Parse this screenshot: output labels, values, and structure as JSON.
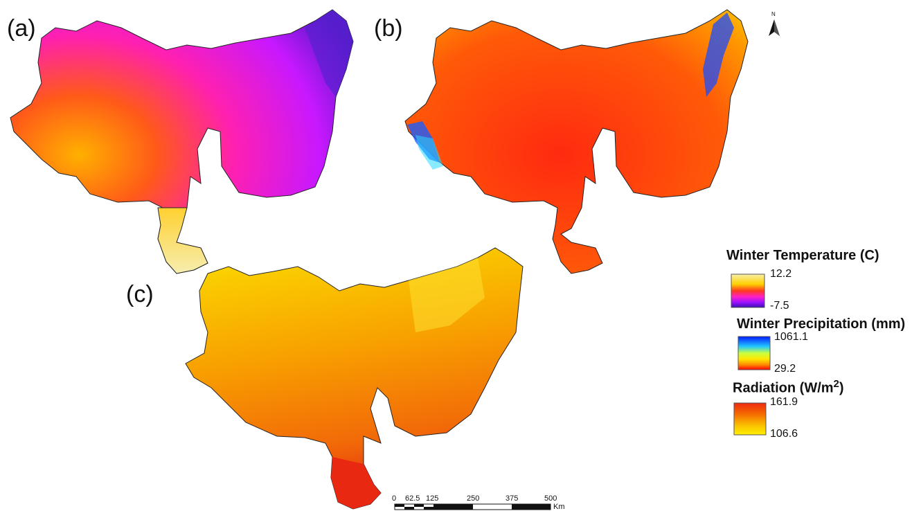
{
  "panels": [
    {
      "label": "(a)",
      "variable": "Winter Temperature"
    },
    {
      "label": "(b)",
      "variable": "Winter Precipitation"
    },
    {
      "label": "(c)",
      "variable": "Radiation"
    }
  ],
  "north_arrow": {
    "letter": "N"
  },
  "legends": {
    "temperature": {
      "title": "Winter Temperature (C)",
      "max": "12.2",
      "min": "-7.5",
      "colors": [
        "#f7f0a8",
        "#ffd000",
        "#ff3a1e",
        "#ff20c8",
        "#9a10ff",
        "#3a10b0"
      ]
    },
    "precipitation": {
      "title": "Winter Precipitation (mm)",
      "max": "1061.1",
      "min": "29.2",
      "colors": [
        "#0018ff",
        "#22c8ff",
        "#c8ff40",
        "#ffe800",
        "#ff8a00",
        "#ff0000"
      ]
    },
    "radiation": {
      "title_main": "Radiation (W/m",
      "title_sup": "2",
      "title_end": ")",
      "max": "161.9",
      "min": "106.6",
      "colors": [
        "#ee2a10",
        "#f46a00",
        "#fac000",
        "#fff000"
      ]
    }
  },
  "scale_bar": {
    "ticks": [
      "0",
      "62.5",
      "125",
      "250",
      "375",
      "500"
    ],
    "unit": "Km"
  }
}
